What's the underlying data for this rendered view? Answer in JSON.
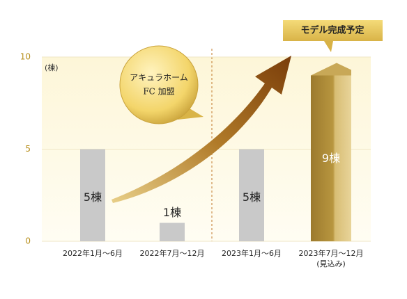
{
  "chart_data": {
    "type": "bar",
    "unit_label": "(棟)",
    "categories": [
      "2022年1月〜6月",
      "2022年7月〜12月",
      "2023年1月〜6月",
      "2023年7月〜12月"
    ],
    "category_note": "(見込み)",
    "values": [
      5,
      1,
      5,
      9
    ],
    "value_labels": [
      "5棟",
      "1棟",
      "5棟",
      "9棟"
    ],
    "colors": [
      "#c9c9c9",
      "#c9c9c9",
      "#c9c9c9",
      "#b08a3a"
    ],
    "ylim": [
      0,
      10
    ],
    "yticks": [
      0,
      5,
      10
    ],
    "grid": true,
    "bubble_lines": [
      "アキュラホーム",
      "FC 加盟"
    ],
    "callout": "モデル完成予定"
  }
}
